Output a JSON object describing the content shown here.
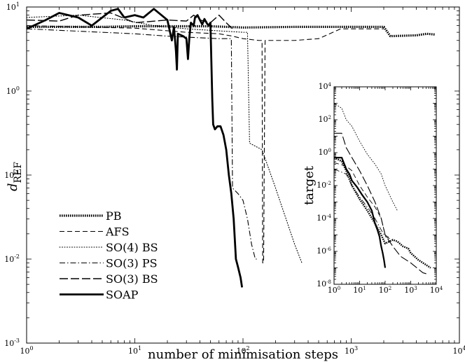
{
  "chart_data": [
    {
      "type": "line",
      "xlabel": "number of minimisation steps",
      "ylabel_main": "d",
      "ylabel_sub": "REF",
      "xscale": "log",
      "yscale": "log",
      "xlim": [
        1,
        10000
      ],
      "ylim": [
        0.001,
        10
      ],
      "x_ticks": [
        {
          "v": 1,
          "m": "0"
        },
        {
          "v": 10,
          "m": "1"
        },
        {
          "v": 100,
          "m": "2"
        },
        {
          "v": 1000,
          "m": "3"
        },
        {
          "v": 10000,
          "m": "4"
        }
      ],
      "y_ticks": [
        {
          "v": 0.001,
          "m": "-3"
        },
        {
          "v": 0.01,
          "m": "-2"
        },
        {
          "v": 0.1,
          "m": "-1"
        },
        {
          "v": 1,
          "m": "0"
        },
        {
          "v": 10,
          "m": "1"
        }
      ],
      "tick_base": "10",
      "legend_position": "lower-left",
      "series": [
        {
          "name": "PB",
          "style": "dense-dot",
          "points": [
            [
              1,
              5.8
            ],
            [
              5,
              5.8
            ],
            [
              10,
              5.9
            ],
            [
              50,
              5.9
            ],
            [
              100,
              5.7
            ],
            [
              300,
              5.8
            ],
            [
              1000,
              5.8
            ],
            [
              2000,
              5.8
            ],
            [
              2300,
              4.5
            ],
            [
              4000,
              4.6
            ],
            [
              5000,
              4.8
            ],
            [
              6000,
              4.7
            ]
          ]
        },
        {
          "name": "AFS",
          "style": "dash",
          "points": [
            [
              1,
              6
            ],
            [
              10,
              5.6
            ],
            [
              30,
              5
            ],
            [
              60,
              4.8
            ],
            [
              80,
              4.5
            ],
            [
              100,
              4.2
            ],
            [
              140,
              4
            ],
            [
              150,
              4
            ],
            [
              152,
              0.009
            ],
            [
              155,
              0.009
            ],
            [
              160,
              4
            ],
            [
              300,
              4
            ],
            [
              500,
              4.2
            ],
            [
              800,
              5.5
            ],
            [
              2000,
              5.5
            ]
          ]
        },
        {
          "name": "SO(4) BS",
          "style": "dot",
          "points": [
            [
              1,
              7.5
            ],
            [
              3,
              8
            ],
            [
              8,
              7
            ],
            [
              15,
              6
            ],
            [
              30,
              5.5
            ],
            [
              60,
              5.2
            ],
            [
              100,
              5
            ],
            [
              110,
              5
            ],
            [
              115,
              0.24
            ],
            [
              150,
              0.2
            ],
            [
              200,
              0.07
            ],
            [
              250,
              0.03
            ],
            [
              300,
              0.015
            ],
            [
              350,
              0.009
            ]
          ]
        },
        {
          "name": "SO(3) PS",
          "style": "dashdot",
          "points": [
            [
              1,
              5.5
            ],
            [
              5,
              5
            ],
            [
              10,
              4.8
            ],
            [
              20,
              4.5
            ],
            [
              40,
              4.3
            ],
            [
              60,
              4.2
            ],
            [
              78,
              4.2
            ],
            [
              80,
              0.07
            ],
            [
              90,
              0.06
            ],
            [
              100,
              0.05
            ],
            [
              110,
              0.03
            ],
            [
              120,
              0.015
            ],
            [
              130,
              0.01
            ],
            [
              140,
              0.01
            ]
          ]
        },
        {
          "name": "SO(3) BS",
          "style": "longdash",
          "points": [
            [
              1,
              7
            ],
            [
              2,
              6.8
            ],
            [
              3,
              8
            ],
            [
              6,
              8.5
            ],
            [
              10,
              6.5
            ],
            [
              20,
              7
            ],
            [
              30,
              6.8
            ],
            [
              35,
              8
            ],
            [
              40,
              7
            ],
            [
              50,
              6.5
            ],
            [
              60,
              8
            ],
            [
              70,
              6.5
            ],
            [
              80,
              5.5
            ]
          ]
        },
        {
          "name": "SOAP",
          "style": "solid",
          "points": [
            [
              1,
              5.5
            ],
            [
              1.5,
              7
            ],
            [
              2,
              8.5
            ],
            [
              3,
              7.5
            ],
            [
              4,
              6
            ],
            [
              5,
              7.5
            ],
            [
              6,
              9
            ],
            [
              7,
              9.5
            ],
            [
              8,
              7.5
            ],
            [
              10,
              8
            ],
            [
              12,
              7.5
            ],
            [
              15,
              9.5
            ],
            [
              20,
              7
            ],
            [
              22,
              4
            ],
            [
              23,
              5.8
            ],
            [
              24,
              3
            ],
            [
              24.5,
              1.8
            ],
            [
              25,
              4.8
            ],
            [
              28,
              4.5
            ],
            [
              30,
              4.2
            ],
            [
              31,
              2.4
            ],
            [
              32,
              4.5
            ],
            [
              33,
              6.5
            ],
            [
              35,
              6
            ],
            [
              36,
              7.5
            ],
            [
              38,
              8
            ],
            [
              40,
              7
            ],
            [
              42,
              6.2
            ],
            [
              44,
              7.2
            ],
            [
              46,
              6.5
            ],
            [
              48,
              6
            ],
            [
              50,
              6.5
            ],
            [
              52,
              0.8
            ],
            [
              53,
              0.4
            ],
            [
              55,
              0.35
            ],
            [
              58,
              0.38
            ],
            [
              62,
              0.38
            ],
            [
              66,
              0.3
            ],
            [
              70,
              0.2
            ],
            [
              74,
              0.1
            ],
            [
              78,
              0.06
            ],
            [
              82,
              0.03
            ],
            [
              86,
              0.01
            ],
            [
              90,
              0.008
            ],
            [
              95,
              0.006
            ],
            [
              98,
              0.0046
            ]
          ]
        }
      ]
    },
    {
      "type": "line",
      "ylabel": "target",
      "xscale": "log",
      "yscale": "log",
      "xlim": [
        1,
        10000
      ],
      "ylim": [
        1e-08,
        10000
      ],
      "x_ticks": [
        {
          "v": 1,
          "m": "0"
        },
        {
          "v": 10,
          "m": "1"
        },
        {
          "v": 100,
          "m": "2"
        },
        {
          "v": 1000,
          "m": "3"
        },
        {
          "v": 10000,
          "m": "4"
        }
      ],
      "y_ticks": [
        {
          "v": 1e-08,
          "m": "-8"
        },
        {
          "v": 1e-06,
          "m": "-6"
        },
        {
          "v": 0.0001,
          "m": "-4"
        },
        {
          "v": 0.01,
          "m": "-2"
        },
        {
          "v": 1,
          "m": "0"
        },
        {
          "v": 100,
          "m": "2"
        },
        {
          "v": 10000,
          "m": "4"
        }
      ],
      "tick_base": "10",
      "series": [
        {
          "name": "PB",
          "style": "dense-dot",
          "points": [
            [
              1,
              0.5
            ],
            [
              2,
              0.3
            ],
            [
              3,
              0.08
            ],
            [
              5,
              0.01
            ],
            [
              10,
              0.0015
            ],
            [
              20,
              0.0003
            ],
            [
              40,
              5e-05
            ],
            [
              70,
              1e-05
            ],
            [
              100,
              3e-06
            ],
            [
              200,
              5e-06
            ],
            [
              300,
              4e-06
            ],
            [
              500,
              2e-06
            ],
            [
              800,
              1.5e-06
            ],
            [
              1000,
              8e-07
            ],
            [
              2000,
              3e-07
            ],
            [
              4000,
              1.5e-07
            ],
            [
              6000,
              1e-07
            ]
          ]
        },
        {
          "name": "AFS",
          "style": "dash",
          "points": [
            [
              1,
              0.25
            ],
            [
              3,
              0.15
            ],
            [
              5,
              0.08
            ],
            [
              10,
              0.01
            ],
            [
              20,
              0.002
            ],
            [
              40,
              0.0005
            ],
            [
              70,
              0.0001
            ],
            [
              100,
              1e-05
            ],
            [
              120,
              8e-06
            ],
            [
              150,
              7e-06
            ]
          ]
        },
        {
          "name": "SO(4) BS",
          "style": "dot",
          "points": [
            [
              1,
              1000
            ],
            [
              2,
              500
            ],
            [
              3,
              100
            ],
            [
              5,
              40
            ],
            [
              10,
              5
            ],
            [
              20,
              0.8
            ],
            [
              40,
              0.2
            ],
            [
              70,
              0.05
            ],
            [
              100,
              0.01
            ],
            [
              200,
              0.001
            ],
            [
              300,
              0.0003
            ]
          ]
        },
        {
          "name": "SO(3) PS",
          "style": "dashdot",
          "points": [
            [
              1,
              0.1
            ],
            [
              3,
              0.05
            ],
            [
              5,
              0.01
            ],
            [
              10,
              0.002
            ],
            [
              20,
              0.0005
            ],
            [
              40,
              0.0001
            ],
            [
              70,
              2e-05
            ],
            [
              100,
              8e-06
            ],
            [
              150,
              6e-06
            ]
          ]
        },
        {
          "name": "SO(3) BS",
          "style": "longdash",
          "points": [
            [
              1,
              15
            ],
            [
              2,
              15
            ],
            [
              3,
              2
            ],
            [
              5,
              0.5
            ],
            [
              10,
              0.08
            ],
            [
              20,
              0.01
            ],
            [
              40,
              0.001
            ],
            [
              70,
              0.0001
            ],
            [
              100,
              1e-05
            ],
            [
              200,
              2e-06
            ],
            [
              400,
              5e-07
            ],
            [
              1000,
              2e-07
            ],
            [
              3000,
              5e-08
            ],
            [
              5000,
              4e-08
            ]
          ]
        },
        {
          "name": "SOAP",
          "style": "solid",
          "points": [
            [
              1,
              0.5
            ],
            [
              2,
              0.5
            ],
            [
              3,
              0.1
            ],
            [
              4,
              0.05
            ],
            [
              5,
              0.02
            ],
            [
              8,
              0.008
            ],
            [
              12,
              0.003
            ],
            [
              20,
              0.001
            ],
            [
              30,
              0.0003
            ],
            [
              40,
              5e-05
            ],
            [
              50,
              2e-05
            ],
            [
              60,
              8e-06
            ],
            [
              70,
              2e-06
            ],
            [
              80,
              8e-07
            ],
            [
              90,
              3e-07
            ],
            [
              100,
              1e-07
            ]
          ]
        }
      ]
    }
  ]
}
